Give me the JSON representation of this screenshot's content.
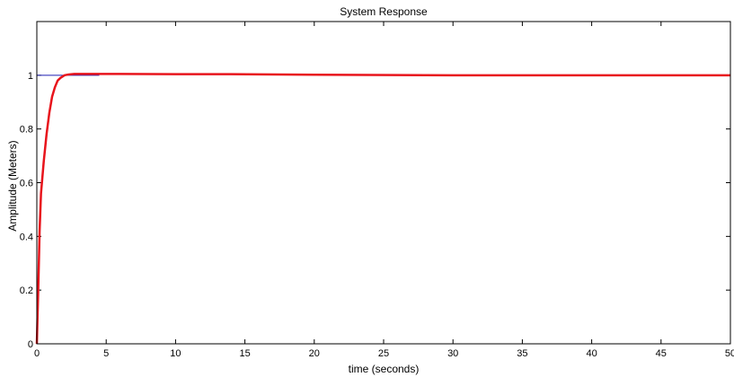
{
  "chart_data": {
    "type": "line",
    "title": "System Response",
    "xlabel": "time (seconds)",
    "ylabel": "Amplitude (Meters)",
    "xlim": [
      0,
      50
    ],
    "ylim": [
      0,
      1.2
    ],
    "xticks": [
      0,
      5,
      10,
      15,
      20,
      25,
      30,
      35,
      40,
      45,
      50
    ],
    "yticks": [
      0,
      0.2,
      0.4,
      0.6,
      0.8,
      1
    ],
    "xtick_labels": [
      "0",
      "5",
      "10",
      "15",
      "20",
      "25",
      "30",
      "35",
      "40",
      "45",
      "50"
    ],
    "ytick_labels": [
      "0",
      "0.2",
      "0.4",
      "0.6",
      "0.8",
      "1"
    ],
    "grid": false,
    "series": [
      {
        "color": "#1f1fb4",
        "x": [
          0,
          0,
          0.02,
          4.5
        ],
        "y": [
          0,
          1,
          1,
          1
        ]
      },
      {
        "color": "#e8141c",
        "x": [
          0,
          0.1,
          0.2,
          0.3,
          0.4,
          0.5,
          0.7,
          0.9,
          1.1,
          1.3,
          1.5,
          1.7,
          2.0,
          2.3,
          2.7,
          3.0,
          4.0,
          6.0,
          10.0,
          14.0,
          20.0,
          30.0,
          40.0,
          50.0
        ],
        "y": [
          0,
          0.2,
          0.42,
          0.56,
          0.62,
          0.68,
          0.78,
          0.86,
          0.92,
          0.955,
          0.98,
          0.99,
          1.0,
          1.003,
          1.005,
          1.005,
          1.005,
          1.005,
          1.004,
          1.004,
          1.002,
          1.0,
          1.0,
          1.0
        ]
      }
    ]
  }
}
